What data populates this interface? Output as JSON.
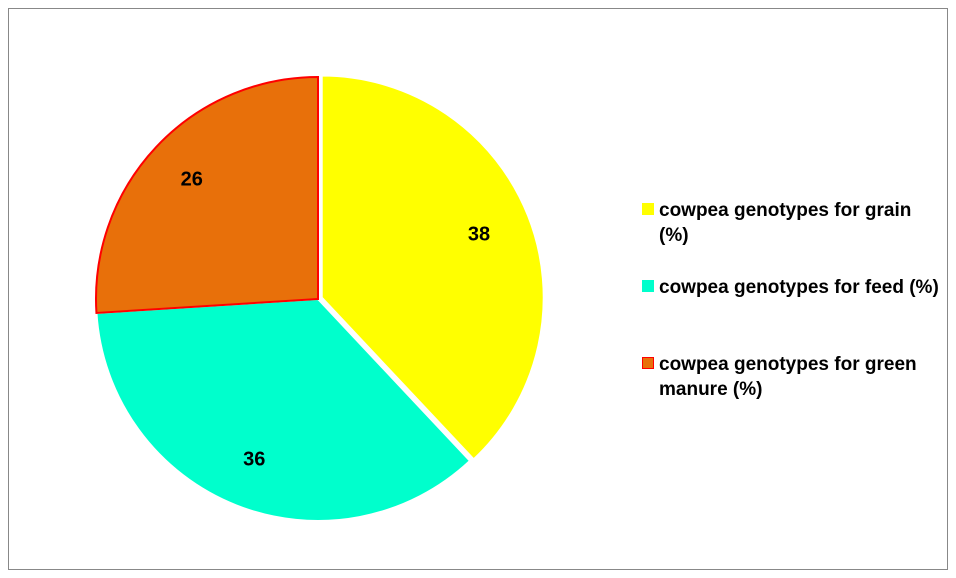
{
  "chart_data": {
    "type": "pie",
    "categories": [
      "cowpea genotypes for grain (%)",
      "cowpea genotypes for feed (%)",
      "cowpea genotypes for green manure (%)"
    ],
    "values": [
      38,
      36,
      26
    ],
    "colors": [
      "#ffff00",
      "#00ffcc",
      "#e8700a"
    ],
    "legend": "right"
  }
}
